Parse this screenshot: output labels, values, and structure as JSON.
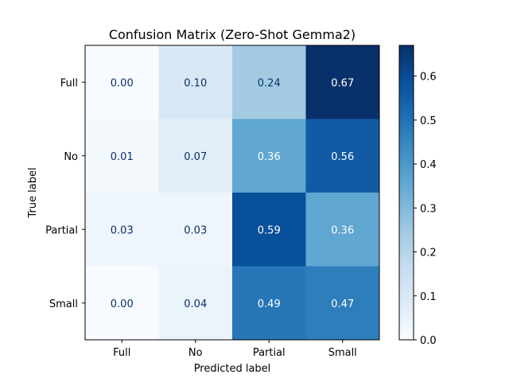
{
  "chart_data": {
    "type": "heatmap",
    "title": "Confusion Matrix (Zero-Shot Gemma2)",
    "xlabel": "Predicted label",
    "ylabel": "True label",
    "x_categories": [
      "Full",
      "No",
      "Partial",
      "Small"
    ],
    "y_categories": [
      "Full",
      "No",
      "Partial",
      "Small"
    ],
    "values": [
      [
        0.0,
        0.1,
        0.24,
        0.67
      ],
      [
        0.01,
        0.07,
        0.36,
        0.56
      ],
      [
        0.03,
        0.03,
        0.59,
        0.36
      ],
      [
        0.0,
        0.04,
        0.49,
        0.47
      ]
    ],
    "value_labels": [
      [
        "0.00",
        "0.10",
        "0.24",
        "0.67"
      ],
      [
        "0.01",
        "0.07",
        "0.36",
        "0.56"
      ],
      [
        "0.03",
        "0.03",
        "0.59",
        "0.36"
      ],
      [
        "0.00",
        "0.04",
        "0.49",
        "0.47"
      ]
    ],
    "colormap": "Blues",
    "colorbar": {
      "range": [
        0.0,
        0.67
      ],
      "ticks": [
        0.0,
        0.1,
        0.2,
        0.3,
        0.4,
        0.5,
        0.6
      ],
      "tick_labels": [
        "0.0",
        "0.1",
        "0.2",
        "0.3",
        "0.4",
        "0.5",
        "0.6"
      ]
    },
    "colors": {
      "dark_text": "#08306b",
      "light_text": "#ffffff"
    }
  }
}
